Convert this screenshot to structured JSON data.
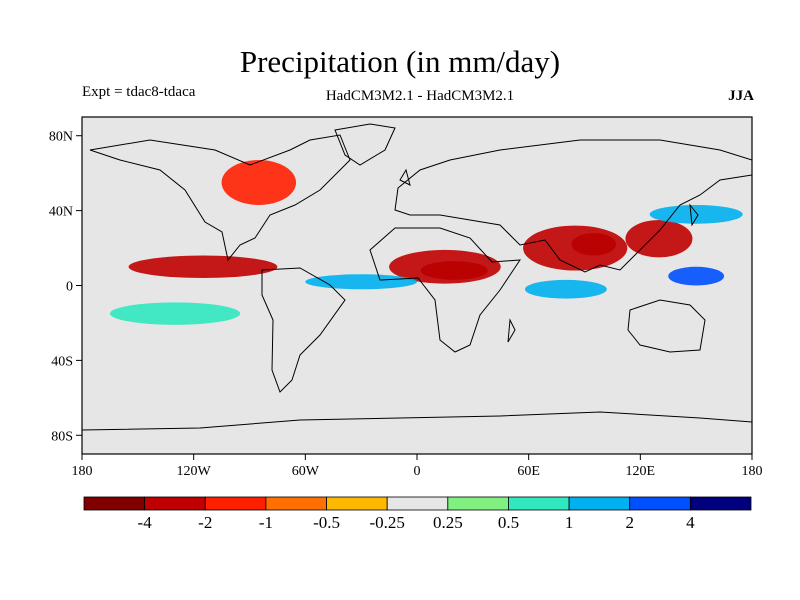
{
  "header": {
    "title": "Precipitation (in mm/day)",
    "experiment": "Expt = tdac8-tdaca",
    "models": "HadCM3M2.1 - HadCM3M2.1",
    "season": "JJA"
  },
  "axes": {
    "lat_ticks": [
      {
        "lat": 80,
        "label": "80N"
      },
      {
        "lat": 40,
        "label": "40N"
      },
      {
        "lat": 0,
        "label": "0"
      },
      {
        "lat": -40,
        "label": "40S"
      },
      {
        "lat": -80,
        "label": "80S"
      }
    ],
    "lon_ticks": [
      {
        "lon": -180,
        "label": "180"
      },
      {
        "lon": -120,
        "label": "120W"
      },
      {
        "lon": -60,
        "label": "60W"
      },
      {
        "lon": 0,
        "label": "0"
      },
      {
        "lon": 60,
        "label": "60E"
      },
      {
        "lon": 120,
        "label": "120E"
      },
      {
        "lon": 180,
        "label": "180"
      }
    ],
    "lon_range": [
      -180,
      180
    ],
    "lat_range": [
      -90,
      90
    ]
  },
  "colorbar": {
    "colors": [
      "#800000",
      "#c00000",
      "#ff2000",
      "#ff7000",
      "#ffb800",
      "#e6e6e6",
      "#80f080",
      "#30e8c0",
      "#00b0f0",
      "#0050ff",
      "#00007f"
    ],
    "labels": [
      "-4",
      "-2",
      "-1",
      "-0.5",
      "-0.25",
      "0.25",
      "0.5",
      "1",
      "2",
      "4"
    ]
  },
  "fields": {
    "background": "#e6e6e6",
    "anomalies": [
      {
        "name": "bay-of-bengal-dry",
        "level": -4,
        "lon": 95,
        "lat": 22,
        "rx": 12,
        "ry": 6
      },
      {
        "name": "india-dry",
        "level": -2,
        "lon": 85,
        "lat": 20,
        "rx": 28,
        "ry": 12
      },
      {
        "name": "sahel-dry",
        "level": -4,
        "lon": 20,
        "lat": 8,
        "rx": 18,
        "ry": 5
      },
      {
        "name": "africa-dry",
        "level": -2,
        "lon": 15,
        "lat": 10,
        "rx": 30,
        "ry": 9
      },
      {
        "name": "pacific-itcz-dry",
        "level": -2,
        "lon": -115,
        "lat": 10,
        "rx": 40,
        "ry": 6
      },
      {
        "name": "east-asia-dry",
        "level": -2,
        "lon": 130,
        "lat": 25,
        "rx": 18,
        "ry": 10
      },
      {
        "name": "north-america-dry",
        "level": -1,
        "lon": -85,
        "lat": 55,
        "rx": 20,
        "ry": 12
      },
      {
        "name": "atlantic-wet",
        "level": 2,
        "lon": -30,
        "lat": 2,
        "rx": 30,
        "ry": 4
      },
      {
        "name": "indian-ocean-wet",
        "level": 2,
        "lon": 80,
        "lat": -2,
        "rx": 22,
        "ry": 5
      },
      {
        "name": "west-pacific-wet",
        "level": 4,
        "lon": 150,
        "lat": 5,
        "rx": 15,
        "ry": 5
      },
      {
        "name": "south-pacific-wet",
        "level": 1,
        "lon": -130,
        "lat": -15,
        "rx": 35,
        "ry": 6
      },
      {
        "name": "north-pacific-wet",
        "level": 2,
        "lon": 150,
        "lat": 38,
        "rx": 25,
        "ry": 5
      }
    ]
  }
}
